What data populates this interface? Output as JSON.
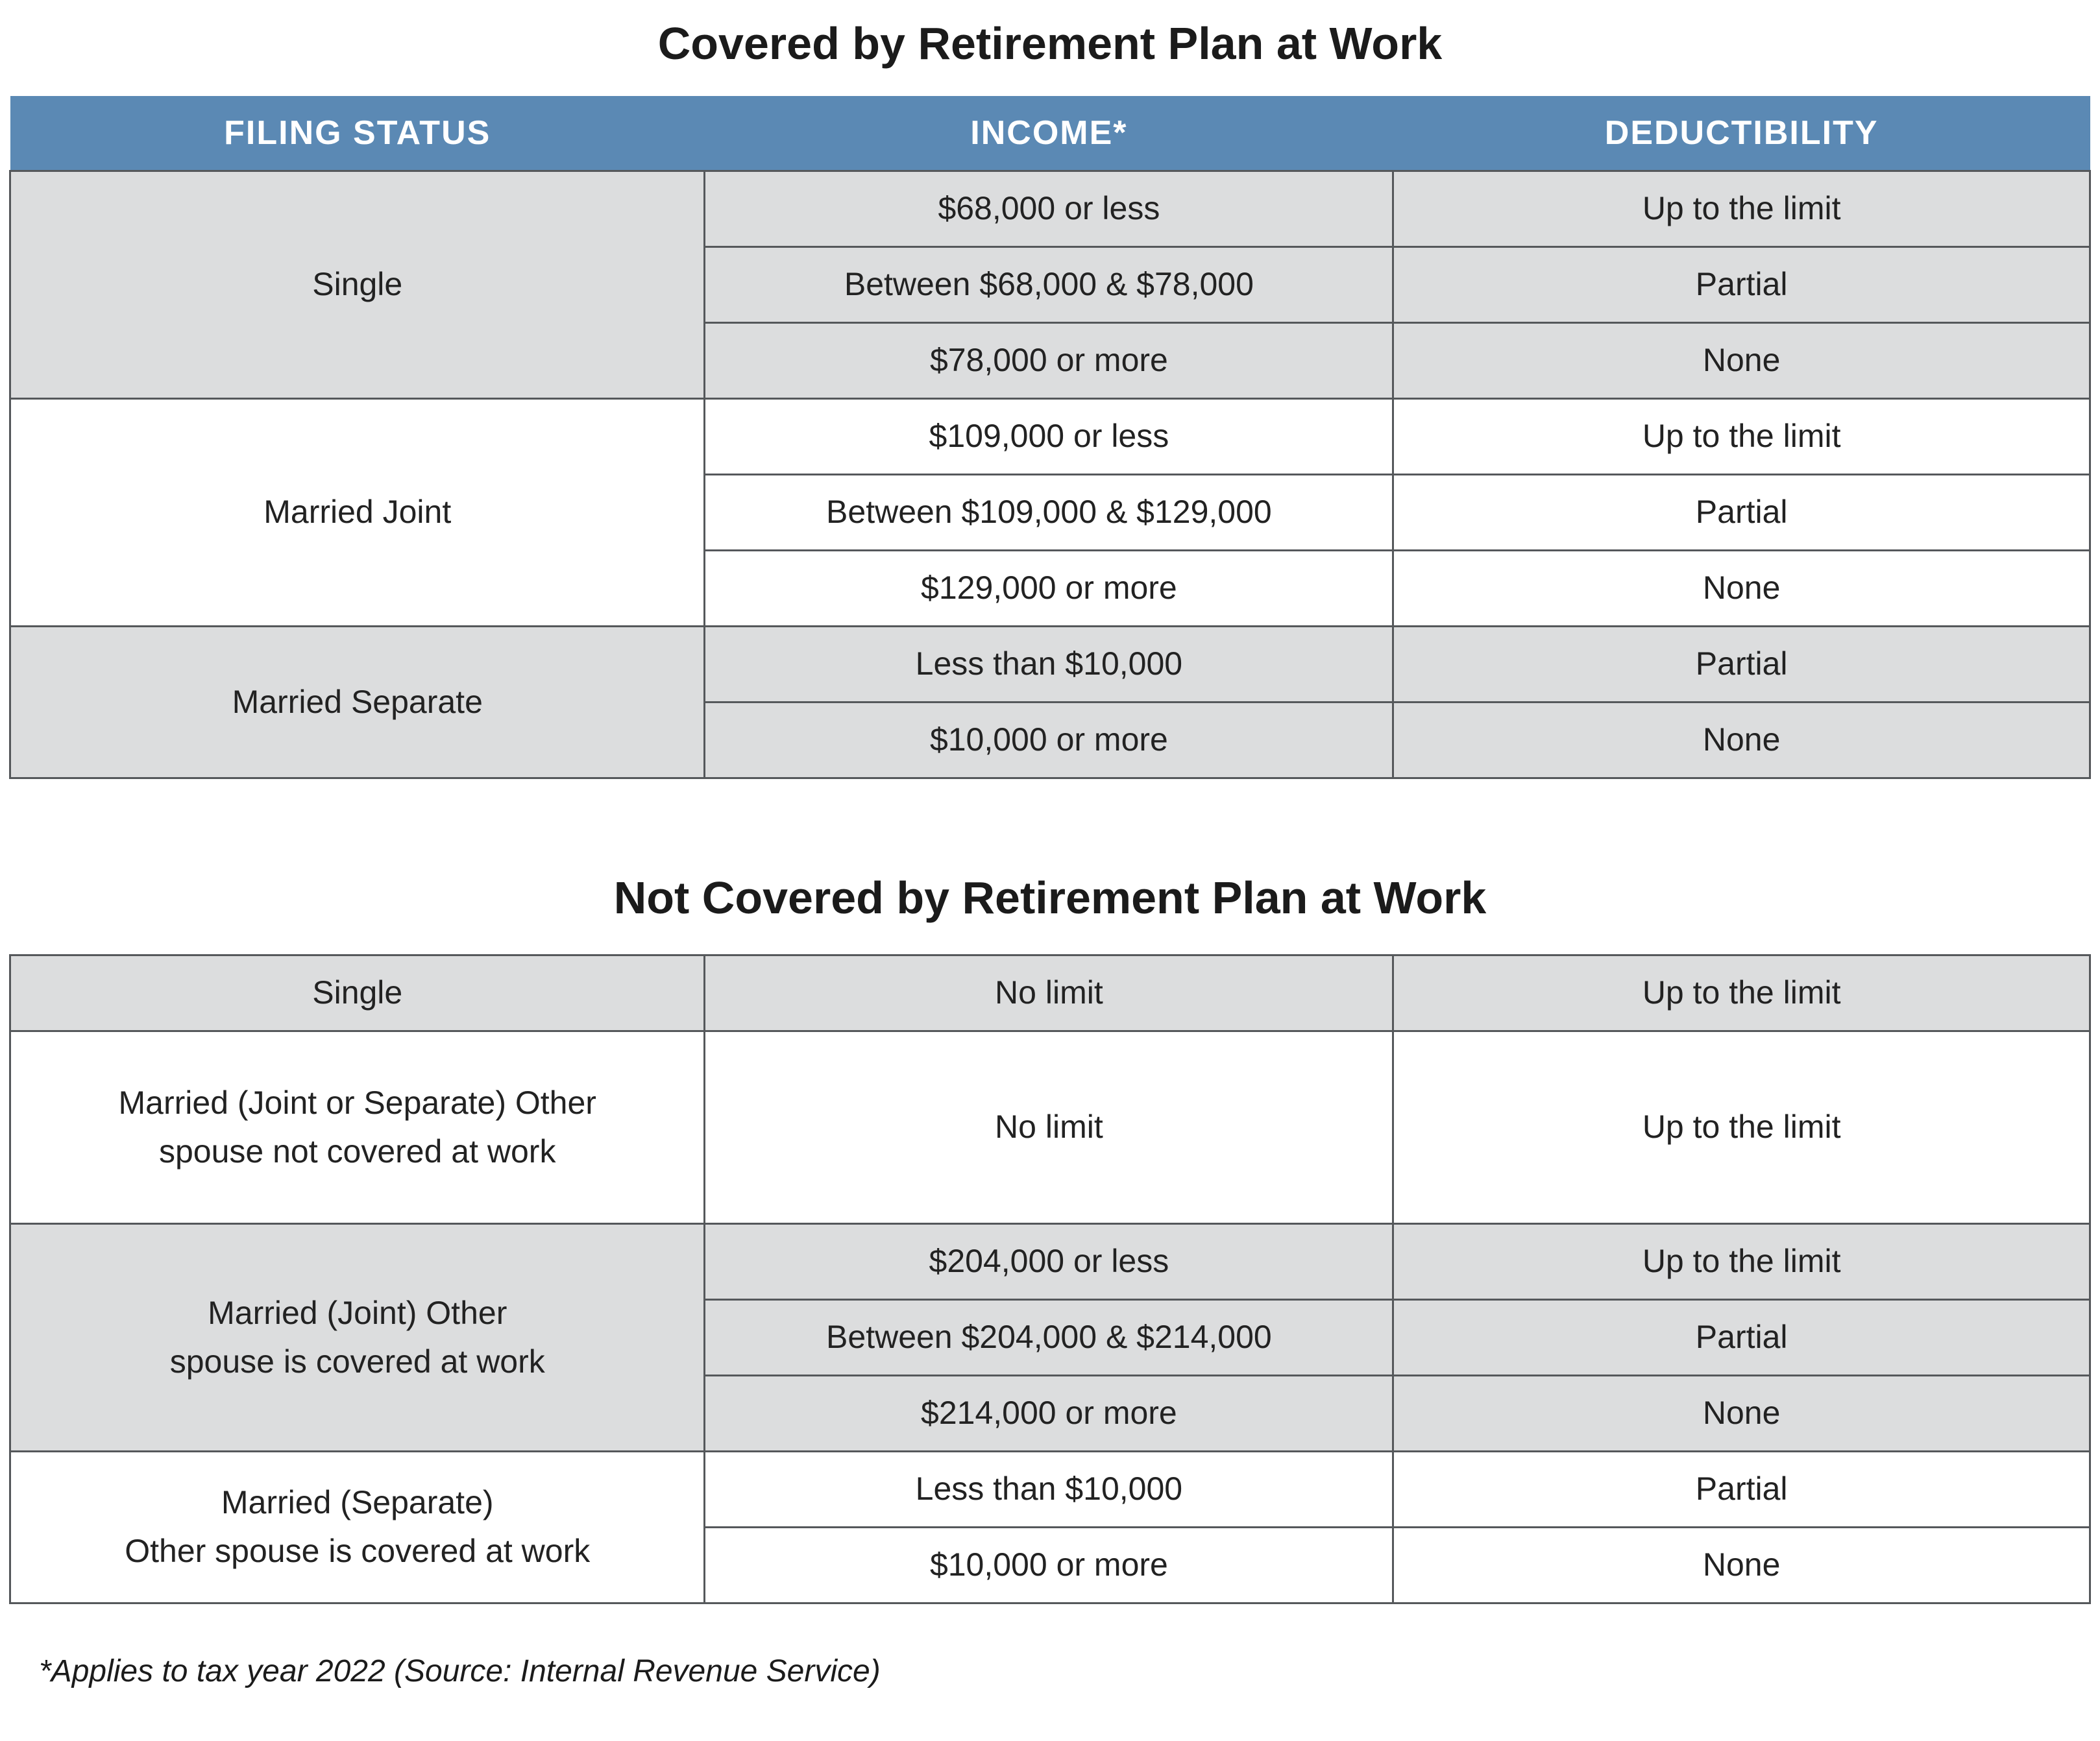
{
  "colors": {
    "header_bg": "#5b89b4",
    "header_text": "#ffffff",
    "row_gray": "#dcddde",
    "row_white": "#ffffff",
    "border": "#55585b",
    "text": "#222222"
  },
  "table1": {
    "title": "Covered by Retirement Plan at Work",
    "columns": [
      "FILING STATUS",
      "INCOME*",
      "DEDUCTIBILITY"
    ],
    "groups": [
      {
        "status": [
          "Single"
        ],
        "shade": "gray",
        "rows": [
          {
            "income": "$68,000 or less",
            "deductibility": "Up to the limit"
          },
          {
            "income": "Between $68,000 & $78,000",
            "deductibility": "Partial"
          },
          {
            "income": "$78,000 or more",
            "deductibility": "None"
          }
        ]
      },
      {
        "status": [
          "Married Joint"
        ],
        "shade": "white",
        "rows": [
          {
            "income": "$109,000 or less",
            "deductibility": "Up to the limit"
          },
          {
            "income": "Between $109,000 & $129,000",
            "deductibility": "Partial"
          },
          {
            "income": "$129,000 or more",
            "deductibility": "None"
          }
        ]
      },
      {
        "status": [
          "Married Separate"
        ],
        "shade": "gray",
        "rows": [
          {
            "income": "Less than $10,000",
            "deductibility": "Partial"
          },
          {
            "income": "$10,000 or more",
            "deductibility": "None"
          }
        ]
      }
    ]
  },
  "table2": {
    "title": "Not Covered by Retirement Plan at Work",
    "groups": [
      {
        "status": [
          "Single"
        ],
        "shade": "gray",
        "rows": [
          {
            "income": "No limit",
            "deductibility": "Up to the limit"
          }
        ]
      },
      {
        "status": [
          "Married (Joint or Separate) Other",
          "spouse not covered at work"
        ],
        "shade": "white",
        "rows": [
          {
            "income": "No limit",
            "deductibility": "Up to the limit"
          }
        ]
      },
      {
        "status": [
          "Married (Joint) Other",
          "spouse is covered at work"
        ],
        "shade": "gray",
        "rows": [
          {
            "income": "$204,000 or less",
            "deductibility": "Up to the limit"
          },
          {
            "income": "Between $204,000 & $214,000",
            "deductibility": "Partial"
          },
          {
            "income": "$214,000 or more",
            "deductibility": "None"
          }
        ]
      },
      {
        "status": [
          "Married (Separate)",
          "Other spouse is covered at work"
        ],
        "shade": "white",
        "rows": [
          {
            "income": "Less than $10,000",
            "deductibility": "Partial"
          },
          {
            "income": "$10,000 or more",
            "deductibility": "None"
          }
        ]
      }
    ]
  },
  "footnote": "*Applies to tax year 2022 (Source: Internal Revenue Service)"
}
